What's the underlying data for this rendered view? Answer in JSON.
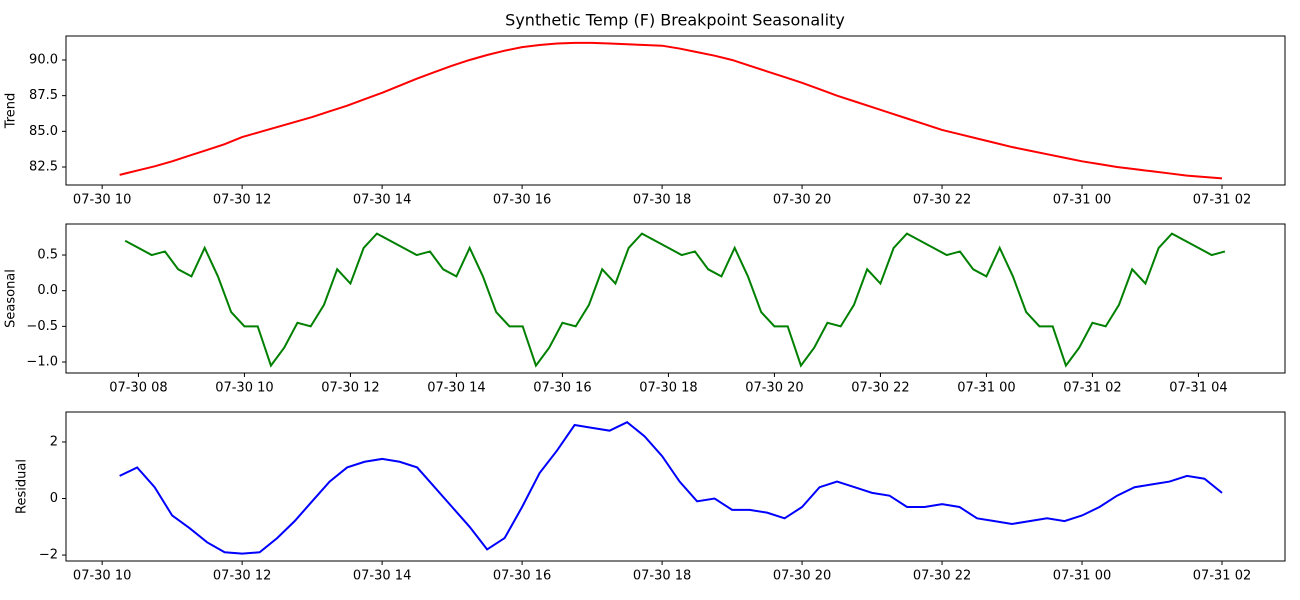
{
  "chart_data": [
    {
      "type": "line",
      "title": "Synthetic Temp (F) Breakpoint Seasonality",
      "ylabel": "Trend",
      "x": [
        "07-30 10:15",
        "07-30 10:30",
        "07-30 10:45",
        "07-30 11:00",
        "07-30 11:15",
        "07-30 11:30",
        "07-30 11:45",
        "07-30 12:00",
        "07-30 12:15",
        "07-30 12:30",
        "07-30 12:45",
        "07-30 13:00",
        "07-30 13:15",
        "07-30 13:30",
        "07-30 13:45",
        "07-30 14:00",
        "07-30 14:15",
        "07-30 14:30",
        "07-30 14:45",
        "07-30 15:00",
        "07-30 15:15",
        "07-30 15:30",
        "07-30 15:45",
        "07-30 16:00",
        "07-30 16:15",
        "07-30 16:30",
        "07-30 16:45",
        "07-30 17:00",
        "07-30 17:15",
        "07-30 17:30",
        "07-30 17:45",
        "07-30 18:00",
        "07-30 18:15",
        "07-30 18:30",
        "07-30 18:45",
        "07-30 19:00",
        "07-30 19:15",
        "07-30 19:30",
        "07-30 19:45",
        "07-30 20:00",
        "07-30 20:15",
        "07-30 20:30",
        "07-30 20:45",
        "07-30 21:00",
        "07-30 21:15",
        "07-30 21:30",
        "07-30 21:45",
        "07-30 22:00",
        "07-30 22:15",
        "07-30 22:30",
        "07-30 22:45",
        "07-30 23:00",
        "07-30 23:15",
        "07-30 23:30",
        "07-30 23:45",
        "07-31 00:00",
        "07-31 00:15",
        "07-31 00:30",
        "07-31 00:45",
        "07-31 01:00",
        "07-31 01:15",
        "07-31 01:30",
        "07-31 01:45",
        "07-31 02:00"
      ],
      "color": "#ff0000",
      "values": [
        81.95,
        82.25,
        82.55,
        82.9,
        83.3,
        83.7,
        84.1,
        84.6,
        84.95,
        85.3,
        85.65,
        86.0,
        86.4,
        86.8,
        87.25,
        87.7,
        88.2,
        88.7,
        89.15,
        89.6,
        90.0,
        90.35,
        90.65,
        90.9,
        91.05,
        91.15,
        91.2,
        91.2,
        91.15,
        91.1,
        91.05,
        91.0,
        90.8,
        90.55,
        90.3,
        90.0,
        89.6,
        89.2,
        88.8,
        88.4,
        87.95,
        87.5,
        87.1,
        86.7,
        86.3,
        85.9,
        85.5,
        85.1,
        84.8,
        84.5,
        84.2,
        83.9,
        83.65,
        83.4,
        83.15,
        82.9,
        82.7,
        82.5,
        82.35,
        82.2,
        82.05,
        81.9,
        81.8,
        81.7
      ],
      "xlim": [
        "07-30 09:29",
        "07-31 02:54"
      ],
      "xticks": [
        "07-30 10",
        "07-30 12",
        "07-30 14",
        "07-30 16",
        "07-30 18",
        "07-30 20",
        "07-30 22",
        "07-31 00",
        "07-31 02"
      ],
      "ylim": [
        81.24,
        91.68
      ],
      "yticks": [
        {
          "value": 82.5,
          "label": "82.5"
        },
        {
          "value": 85,
          "label": "85.0"
        },
        {
          "value": 87.5,
          "label": "87.5"
        },
        {
          "value": 90,
          "label": "90.0"
        }
      ]
    },
    {
      "type": "line",
      "ylabel": "Seasonal",
      "x": [
        "07-30 07:45",
        "07-30 08:00",
        "07-30 08:15",
        "07-30 08:30",
        "07-30 08:45",
        "07-30 09:00",
        "07-30 09:15",
        "07-30 09:30",
        "07-30 09:45",
        "07-30 10:00",
        "07-30 10:15",
        "07-30 10:30",
        "07-30 10:45",
        "07-30 11:00",
        "07-30 11:15",
        "07-30 11:30",
        "07-30 11:45",
        "07-30 12:00",
        "07-30 12:15",
        "07-30 12:30",
        "07-30 12:45",
        "07-30 13:00",
        "07-30 13:15",
        "07-30 13:30",
        "07-30 13:45",
        "07-30 14:00",
        "07-30 14:15",
        "07-30 14:30",
        "07-30 14:45",
        "07-30 15:00",
        "07-30 15:15",
        "07-30 15:30",
        "07-30 15:45",
        "07-30 16:00",
        "07-30 16:15",
        "07-30 16:30",
        "07-30 16:45",
        "07-30 17:00",
        "07-30 17:15",
        "07-30 17:30",
        "07-30 17:45",
        "07-30 18:00",
        "07-30 18:15",
        "07-30 18:30",
        "07-30 18:45",
        "07-30 19:00",
        "07-30 19:15",
        "07-30 19:30",
        "07-30 19:45",
        "07-30 20:00",
        "07-30 20:15",
        "07-30 20:30",
        "07-30 20:45",
        "07-30 21:00",
        "07-30 21:15",
        "07-30 21:30",
        "07-30 21:45",
        "07-30 22:00",
        "07-30 22:15",
        "07-30 22:30",
        "07-30 22:45",
        "07-30 23:00",
        "07-30 23:15",
        "07-30 23:30",
        "07-30 23:45",
        "07-31 00:00",
        "07-31 00:15",
        "07-31 00:30",
        "07-31 00:45",
        "07-31 01:00",
        "07-31 01:15",
        "07-31 01:30",
        "07-31 01:45",
        "07-31 02:00",
        "07-31 02:15",
        "07-31 02:30",
        "07-31 02:45",
        "07-31 03:00",
        "07-31 03:15",
        "07-31 03:30",
        "07-31 03:45",
        "07-31 04:00",
        "07-31 04:15",
        "07-31 04:30"
      ],
      "color": "#008000",
      "values": [
        0.7,
        0.6,
        0.5,
        0.55,
        0.3,
        0.2,
        0.6,
        0.2,
        -0.3,
        -0.5,
        -0.5,
        -1.05,
        -0.8,
        -0.45,
        -0.5,
        -0.2,
        0.3,
        0.1,
        0.6,
        0.8,
        0.7,
        0.6,
        0.5,
        0.55,
        0.3,
        0.2,
        0.6,
        0.2,
        -0.3,
        -0.5,
        -0.5,
        -1.05,
        -0.8,
        -0.45,
        -0.5,
        -0.2,
        0.3,
        0.1,
        0.6,
        0.8,
        0.7,
        0.6,
        0.5,
        0.55,
        0.3,
        0.2,
        0.6,
        0.2,
        -0.3,
        -0.5,
        -0.5,
        -1.05,
        -0.8,
        -0.45,
        -0.5,
        -0.2,
        0.3,
        0.1,
        0.6,
        0.8,
        0.7,
        0.6,
        0.5,
        0.55,
        0.3,
        0.2,
        0.6,
        0.2,
        -0.3,
        -0.5,
        -0.5,
        -1.05,
        -0.8,
        -0.45,
        -0.5,
        -0.2,
        0.3,
        0.1,
        0.6,
        0.8,
        0.7,
        0.6,
        0.5,
        0.55
      ],
      "xlim": [
        "07-30 06:38",
        "07-31 05:38"
      ],
      "xticks": [
        "07-30 08",
        "07-30 10",
        "07-30 12",
        "07-30 14",
        "07-30 16",
        "07-30 18",
        "07-30 20",
        "07-30 22",
        "07-31 00",
        "07-31 02",
        "07-31 04"
      ],
      "ylim": [
        -1.154,
        0.935
      ],
      "yticks": [
        {
          "value": -1,
          "label": "−1.0"
        },
        {
          "value": -0.5,
          "label": "−0.5"
        },
        {
          "value": 0,
          "label": "0.0"
        },
        {
          "value": 0.5,
          "label": "0.5"
        }
      ]
    },
    {
      "type": "line",
      "ylabel": "Residual",
      "x": [
        "07-30 10:15",
        "07-30 10:30",
        "07-30 10:45",
        "07-30 11:00",
        "07-30 11:15",
        "07-30 11:30",
        "07-30 11:45",
        "07-30 12:00",
        "07-30 12:15",
        "07-30 12:30",
        "07-30 12:45",
        "07-30 13:00",
        "07-30 13:15",
        "07-30 13:30",
        "07-30 13:45",
        "07-30 14:00",
        "07-30 14:15",
        "07-30 14:30",
        "07-30 14:45",
        "07-30 15:00",
        "07-30 15:15",
        "07-30 15:30",
        "07-30 15:45",
        "07-30 16:00",
        "07-30 16:15",
        "07-30 16:30",
        "07-30 16:45",
        "07-30 17:00",
        "07-30 17:15",
        "07-30 17:30",
        "07-30 17:45",
        "07-30 18:00",
        "07-30 18:15",
        "07-30 18:30",
        "07-30 18:45",
        "07-30 19:00",
        "07-30 19:15",
        "07-30 19:30",
        "07-30 19:45",
        "07-30 20:00",
        "07-30 20:15",
        "07-30 20:30",
        "07-30 20:45",
        "07-30 21:00",
        "07-30 21:15",
        "07-30 21:30",
        "07-30 21:45",
        "07-30 22:00",
        "07-30 22:15",
        "07-30 22:30",
        "07-30 22:45",
        "07-30 23:00",
        "07-30 23:15",
        "07-30 23:30",
        "07-30 23:45",
        "07-31 00:00",
        "07-31 00:15",
        "07-31 00:30",
        "07-31 00:45",
        "07-31 01:00",
        "07-31 01:15",
        "07-31 01:30",
        "07-31 01:45",
        "07-31 02:00"
      ],
      "color": "#0000ff",
      "values": [
        0.8,
        1.1,
        0.4,
        -0.6,
        -1.05,
        -1.55,
        -1.9,
        -1.95,
        -1.9,
        -1.4,
        -0.8,
        -0.1,
        0.6,
        1.1,
        1.3,
        1.4,
        1.3,
        1.1,
        0.4,
        -0.3,
        -1.0,
        -1.8,
        -1.4,
        -0.3,
        0.9,
        1.7,
        2.6,
        2.5,
        2.4,
        2.7,
        2.2,
        1.5,
        0.6,
        -0.1,
        0.0,
        -0.4,
        -0.4,
        -0.5,
        -0.7,
        -0.3,
        0.4,
        0.6,
        0.4,
        0.2,
        0.1,
        -0.3,
        -0.3,
        -0.2,
        -0.3,
        -0.7,
        -0.8,
        -0.9,
        -0.8,
        -0.7,
        -0.8,
        -0.6,
        -0.3,
        0.1,
        0.4,
        0.5,
        0.6,
        0.8,
        0.7,
        0.2
      ],
      "xlim": [
        "07-30 09:29",
        "07-31 02:54"
      ],
      "xticks": [
        "07-30 10",
        "07-30 12",
        "07-30 14",
        "07-30 16",
        "07-30 18",
        "07-30 20",
        "07-30 22",
        "07-31 00",
        "07-31 02"
      ],
      "ylim": [
        -2.21,
        3.06
      ],
      "yticks": [
        {
          "value": -2,
          "label": "−2"
        },
        {
          "value": 0,
          "label": "0"
        },
        {
          "value": 2,
          "label": "2"
        }
      ]
    }
  ]
}
